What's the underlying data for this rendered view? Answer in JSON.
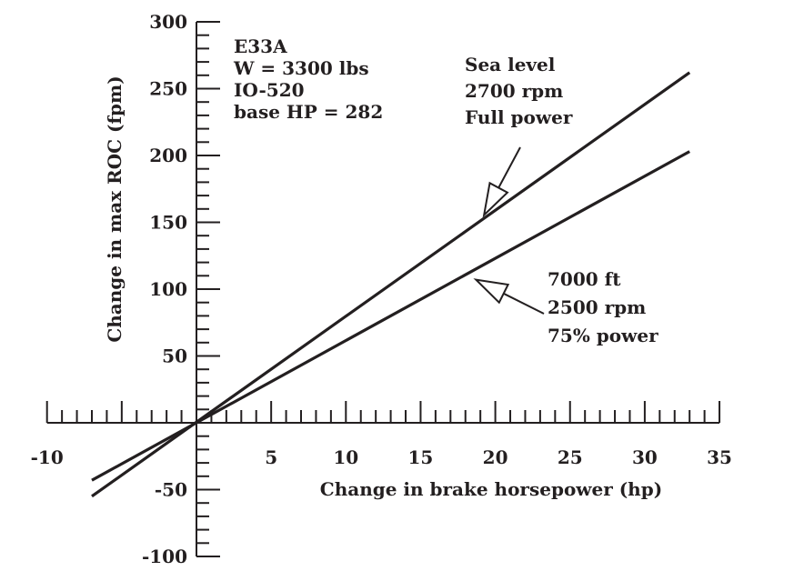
{
  "chart_data": {
    "type": "line",
    "xlabel": "Change in brake horsepower (hp)",
    "ylabel": "Change in max ROC (fpm)",
    "xlim": [
      -10,
      35
    ],
    "ylim": [
      -100,
      300
    ],
    "x_ticks": [
      -10,
      5,
      10,
      15,
      20,
      25,
      30,
      35
    ],
    "y_ticks": [
      300,
      250,
      200,
      150,
      100,
      50,
      -50,
      -100
    ],
    "x_minor_step": 1,
    "y_minor_step": 10,
    "series": [
      {
        "x": [
          -7,
          33
        ],
        "y": [
          -55,
          262
        ]
      },
      {
        "x": [
          -7,
          33
        ],
        "y": [
          -43,
          203
        ]
      }
    ],
    "annotations": [
      {
        "lines": [
          "E33A",
          "W = 3300 lbs",
          "IO-520",
          "base HP = 282"
        ]
      },
      {
        "lines": [
          "Sea level",
          "2700 rpm",
          "Full power"
        ],
        "points_to": {
          "x": 19,
          "y": 150
        }
      },
      {
        "lines": [
          "7000 ft",
          "2500 rpm",
          "75% power"
        ],
        "points_to": {
          "x": 17,
          "y": 103
        }
      }
    ],
    "grid": false,
    "legend": "none"
  }
}
